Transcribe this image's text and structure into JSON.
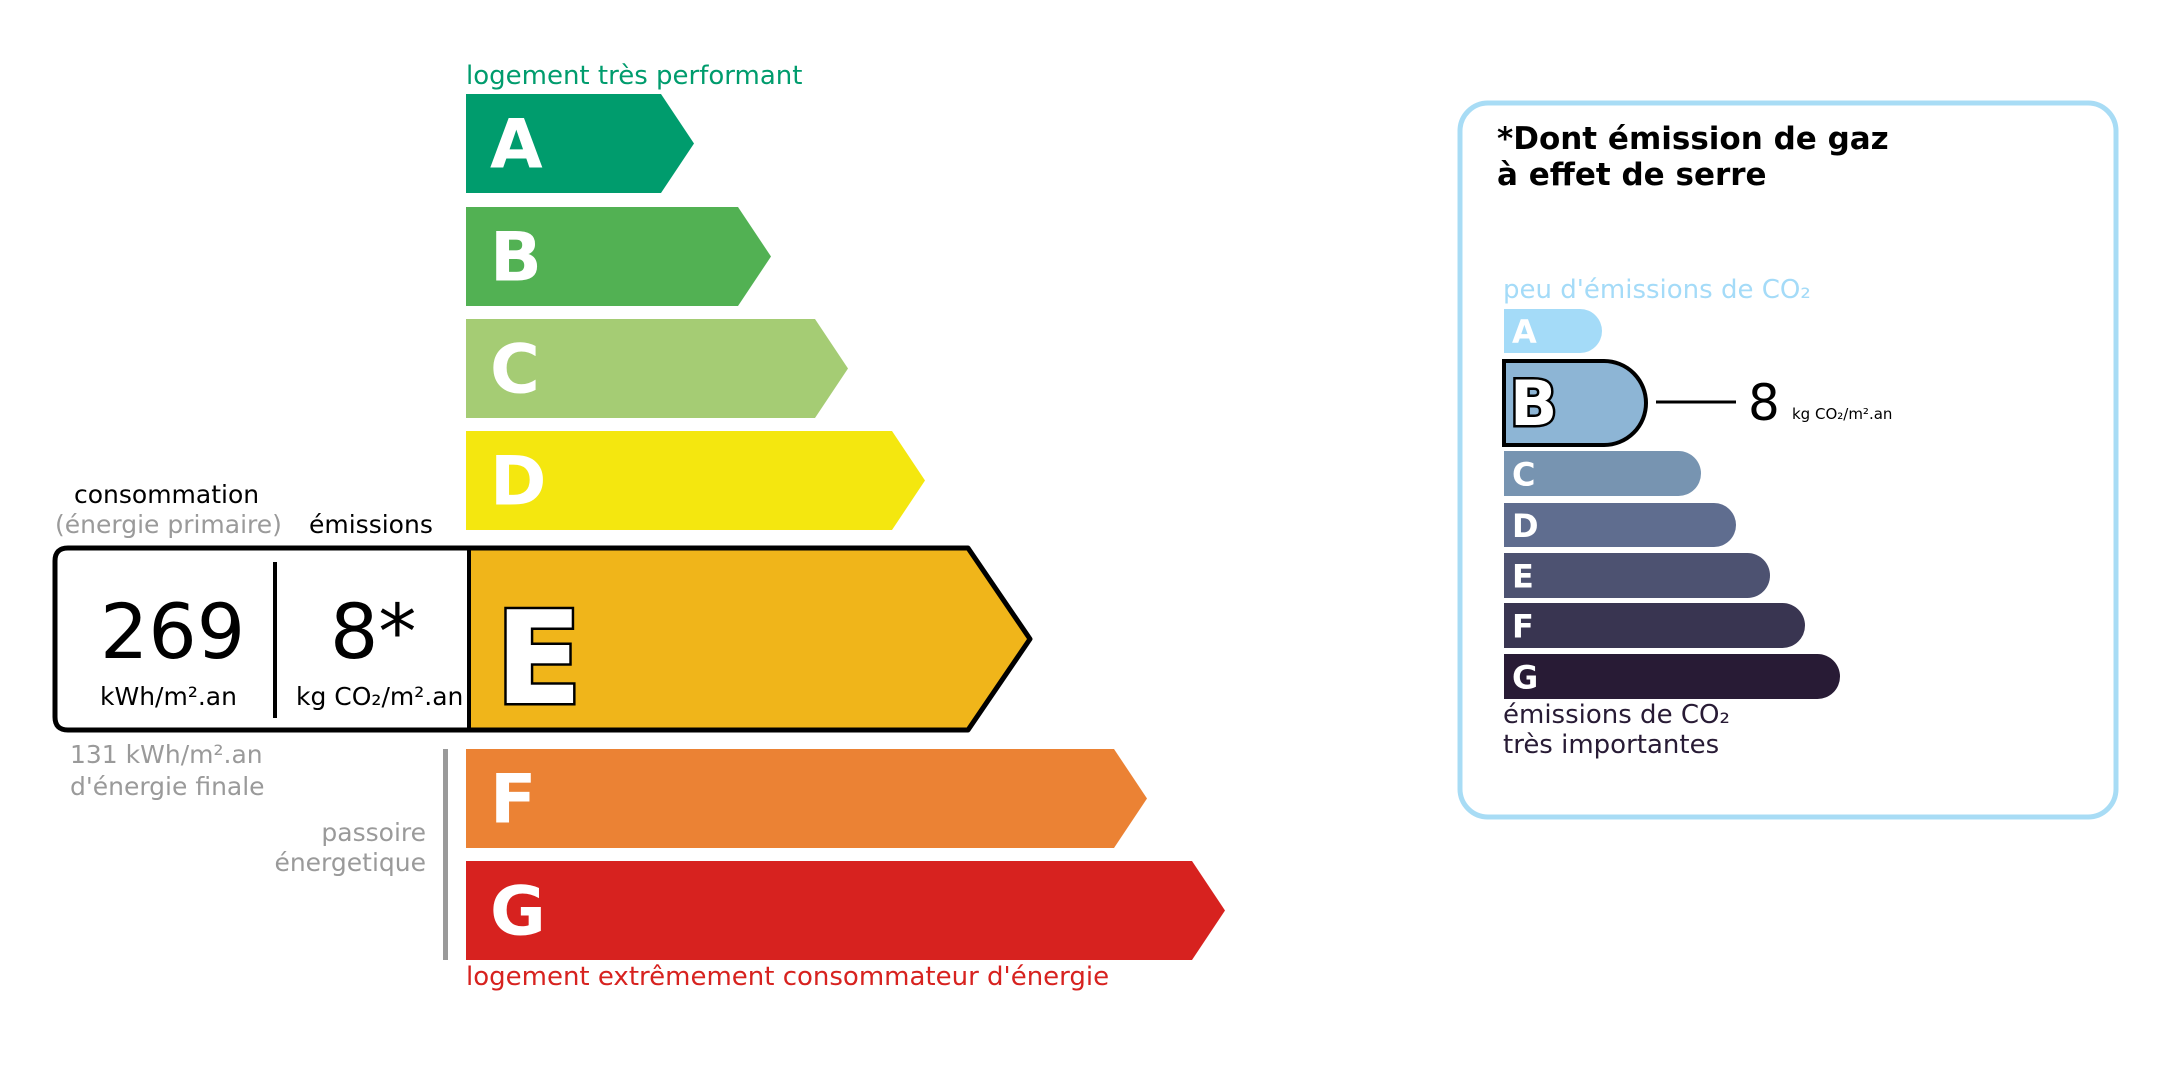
{
  "energy": {
    "top_label": "logement très performant",
    "bottom_label": "logement extrêmement consommateur d'énergie",
    "top_color": "#009c6d",
    "bottom_color": "#d7221f",
    "classes": [
      {
        "letter": "A",
        "color": "#009c6d"
      },
      {
        "letter": "B",
        "color": "#52b153"
      },
      {
        "letter": "C",
        "color": "#a5cc74"
      },
      {
        "letter": "D",
        "color": "#f4e70f"
      },
      {
        "letter": "E",
        "color": "#f0b51a"
      },
      {
        "letter": "F",
        "color": "#eb8234"
      },
      {
        "letter": "G",
        "color": "#d7221f"
      }
    ],
    "current_class": "E",
    "consumption_label": "consommation",
    "consumption_sublabel": "(énergie primaire)",
    "emissions_label": "émissions",
    "consumption_value": "269",
    "consumption_unit": "kWh/m².an",
    "emissions_value": "8*",
    "emissions_unit": "kg CO₂/m².an",
    "final_energy_value": "131 kWh/m².an",
    "final_energy_label": "d'énergie finale",
    "passoire_line1": "passoire",
    "passoire_line2": "énergetique"
  },
  "ges": {
    "title_line1": "*Dont émission de gaz",
    "title_line2": "à effet de serre",
    "top_label": "peu d'émissions de CO₂",
    "bottom_line1": "émissions de CO₂",
    "bottom_line2": "très importantes",
    "border_color": "#a8dcf5",
    "classes": [
      {
        "letter": "A",
        "color": "#a4dbf8"
      },
      {
        "letter": "B",
        "color": "#8db5d5"
      },
      {
        "letter": "C",
        "color": "#7794b1"
      },
      {
        "letter": "D",
        "color": "#5f6d8f"
      },
      {
        "letter": "E",
        "color": "#4d5271"
      },
      {
        "letter": "F",
        "color": "#393551"
      },
      {
        "letter": "G",
        "color": "#281b35"
      }
    ],
    "current_class": "B",
    "value": "8",
    "unit": "kg CO₂/m².an"
  }
}
